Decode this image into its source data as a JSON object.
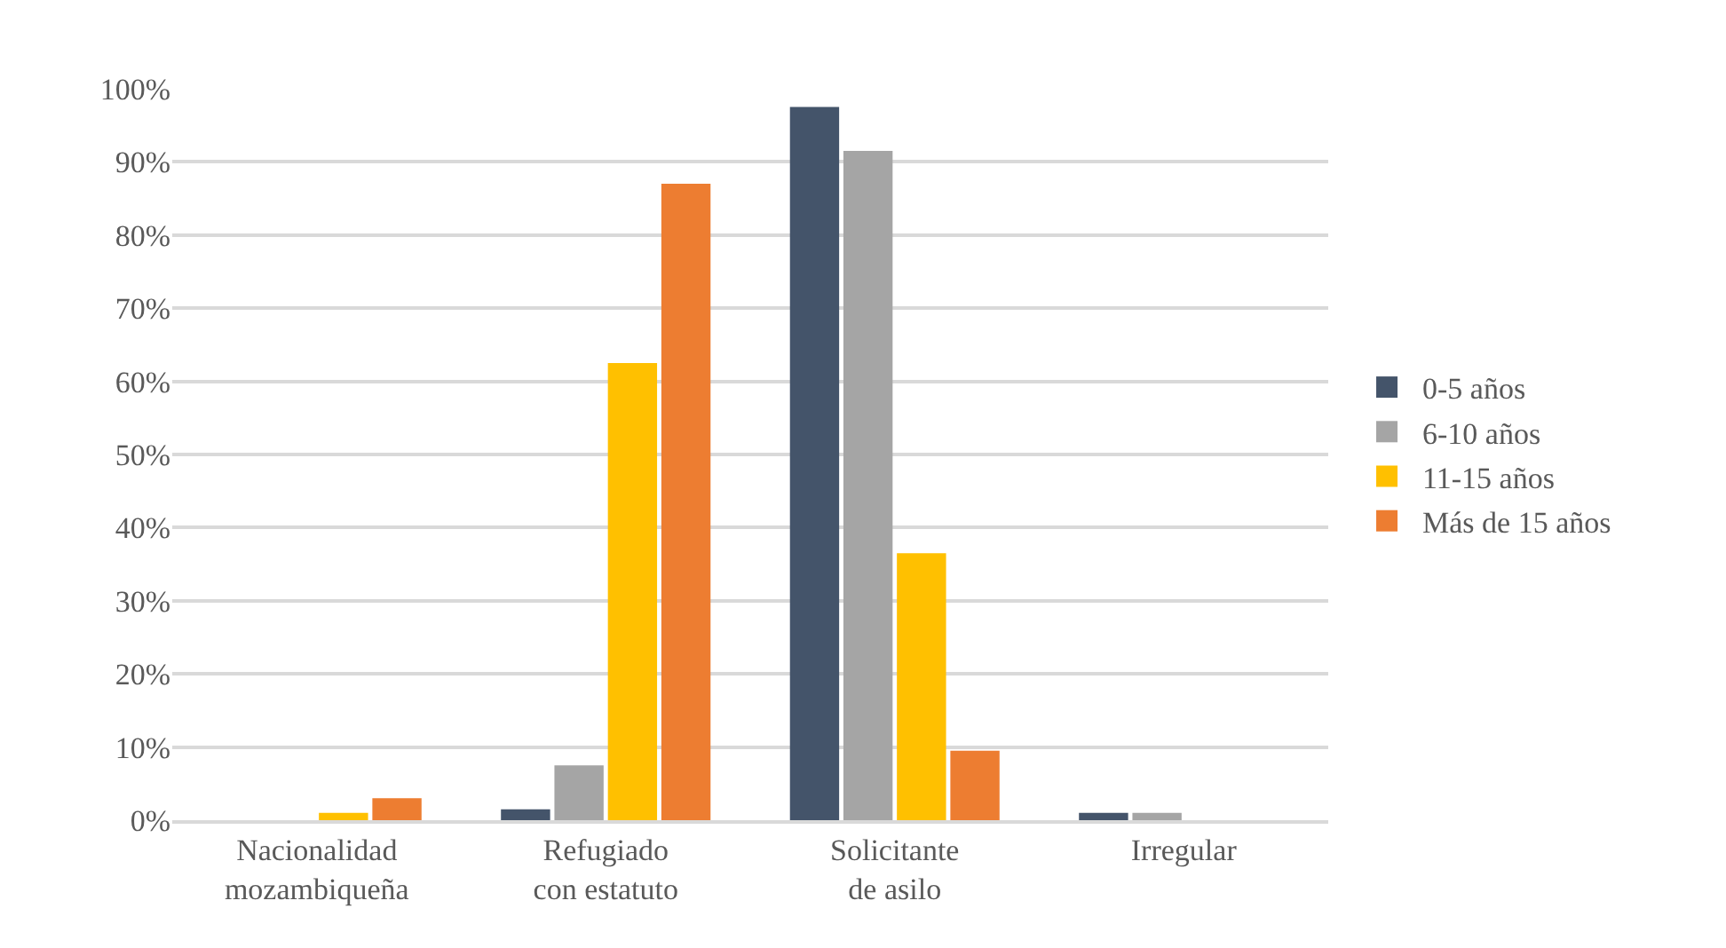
{
  "chart_data": {
    "type": "bar",
    "categories": [
      "Nacionalidad mozambiqueña",
      "Refugiado con estatuto",
      "Solicitante de asilo",
      "Irregular"
    ],
    "series": [
      {
        "name": "0-5 años",
        "color": "#44546a",
        "values": [
          0,
          1.5,
          97.5,
          1
        ]
      },
      {
        "name": "6-10 años",
        "color": "#a5a5a5",
        "values": [
          0,
          7.5,
          91.5,
          1
        ]
      },
      {
        "name": "11-15 años",
        "color": "#ffc000",
        "values": [
          1,
          62.5,
          36.5,
          0
        ]
      },
      {
        "name": "Más de 15 años",
        "color": "#ed7d31",
        "values": [
          3,
          87,
          9.5,
          0
        ]
      }
    ],
    "ylim": [
      0,
      100
    ],
    "yticks": [
      {
        "value": 0,
        "label": "0%"
      },
      {
        "value": 10,
        "label": "10%"
      },
      {
        "value": 20,
        "label": "20%"
      },
      {
        "value": 30,
        "label": "30%"
      },
      {
        "value": 40,
        "label": "40%"
      },
      {
        "value": 50,
        "label": "50%"
      },
      {
        "value": 60,
        "label": "60%"
      },
      {
        "value": 70,
        "label": "70%"
      },
      {
        "value": 80,
        "label": "80%"
      },
      {
        "value": 90,
        "label": "90%"
      },
      {
        "value": 100,
        "label": "100%"
      }
    ],
    "grid": "y",
    "legend": "right"
  }
}
